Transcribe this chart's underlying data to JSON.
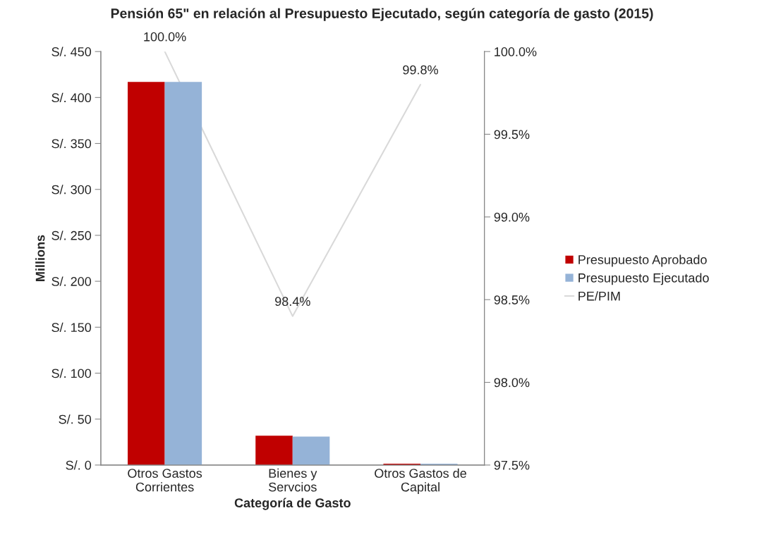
{
  "chart_data": {
    "type": "bar",
    "title": "Pensión 65\" en relación al Presupuesto Ejecutado, según categoría de gasto (2015)",
    "xlabel": "Categoría de Gasto",
    "ylabel": "Millions",
    "categories": [
      "Otros Gastos\nCorrientes",
      "Bienes y\nServcios",
      "Otros Gastos de\nCapital"
    ],
    "series": [
      {
        "name": "Presupuesto Aprobado",
        "color": "#c00000",
        "values": [
          417,
          32,
          1.5
        ]
      },
      {
        "name": "Presupuesto Ejecutado",
        "color": "#95b3d7",
        "values": [
          417,
          31,
          1.4
        ]
      },
      {
        "name": "PE/PIM",
        "type": "line",
        "axis": "y2",
        "color": "#d9d9d9",
        "values": [
          100.0,
          98.4,
          99.8
        ],
        "value_labels": [
          "100.0%",
          "98.4%",
          "99.8%"
        ]
      }
    ],
    "ylim": [
      0,
      450
    ],
    "yticks": [
      {
        "value": 0,
        "label": "S/. 0"
      },
      {
        "value": 50,
        "label": "S/. 50"
      },
      {
        "value": 100,
        "label": "S/. 100"
      },
      {
        "value": 150,
        "label": "S/. 150"
      },
      {
        "value": 200,
        "label": "S/. 200"
      },
      {
        "value": 250,
        "label": "S/. 250"
      },
      {
        "value": 300,
        "label": "S/. 300"
      },
      {
        "value": 350,
        "label": "S/. 350"
      },
      {
        "value": 400,
        "label": "S/. 400"
      },
      {
        "value": 450,
        "label": "S/. 450"
      }
    ],
    "y2lim": [
      97.5,
      100
    ],
    "y2ticks": [
      {
        "value": 97.5,
        "label": "97.5%"
      },
      {
        "value": 98.0,
        "label": "98.0%"
      },
      {
        "value": 98.5,
        "label": "98.5%"
      },
      {
        "value": 99.0,
        "label": "99.0%"
      },
      {
        "value": 99.5,
        "label": "99.5%"
      },
      {
        "value": 100.0,
        "label": "100.0%"
      }
    ],
    "grid": false,
    "legend": "right"
  }
}
